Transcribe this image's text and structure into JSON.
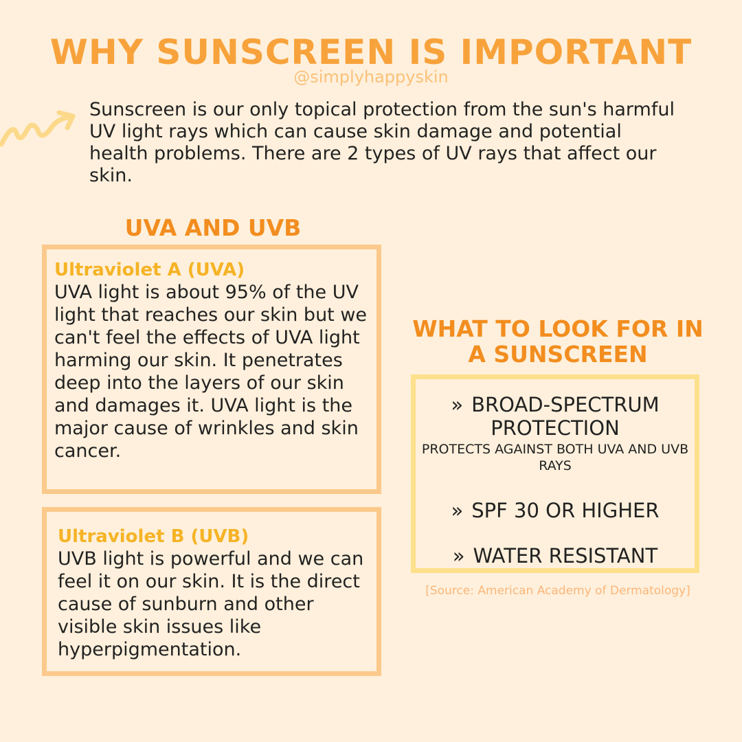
{
  "header": {
    "title": "WHY SUNSCREEN IS IMPORTANT",
    "handle": "@simplyhappyskin"
  },
  "intro": {
    "text": "Sunscreen is our only topical protection from the sun's harmful UV light rays which can cause skin damage and potential health problems. There are 2 types of UV rays that affect our skin."
  },
  "uv_section": {
    "heading": "UVA AND UVB",
    "uva": {
      "title": "Ultraviolet A (UVA)",
      "body": "UVA light is about 95% of the UV light that reaches our skin but we can't feel the effects of UVA light harming our skin. It penetrates deep into the layers of our skin and damages it. UVA light is the major cause of wrinkles and skin cancer."
    },
    "uvb": {
      "title": "Ultraviolet B (UVB)",
      "body": "UVB light is powerful and we can feel it on our skin. It is the direct cause of sunburn and other visible skin issues like hyperpigmentation."
    }
  },
  "look_section": {
    "heading": "WHAT TO LOOK FOR IN A SUNSCREEN",
    "bullet": "»",
    "items": [
      {
        "main": "BROAD-SPECTRUM PROTECTION",
        "sub": "PROTECTS AGAINST BOTH UVA AND UVB RAYS"
      },
      {
        "main": "SPF 30 OR HIGHER"
      },
      {
        "main": "WATER RESISTANT"
      }
    ]
  },
  "source": "[Source: American Academy of Dermatology]",
  "colors": {
    "background": "#fef0dc",
    "title": "#f7a23b",
    "heading": "#f28d1f",
    "card_border": "#fcc98c",
    "look_border": "#fde08c",
    "card_title": "#f5b325",
    "arrow": "#fcd98a"
  },
  "icons": {
    "arrow": "squiggle-arrow-icon"
  }
}
